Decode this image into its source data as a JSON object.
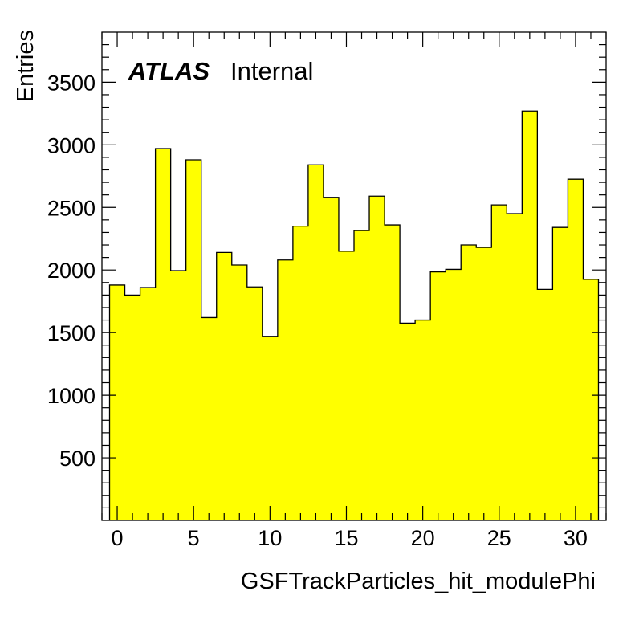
{
  "label": {
    "experiment": "ATLAS",
    "status": "Internal"
  },
  "chart_data": {
    "type": "histogram",
    "xlabel": "GSFTrackParticles_hit_modulePhi",
    "ylabel": "Entries",
    "bin_width": 1,
    "bin_low_edges": [
      -0.5,
      0.5,
      1.5,
      2.5,
      3.5,
      4.5,
      5.5,
      6.5,
      7.5,
      8.5,
      9.5,
      10.5,
      11.5,
      12.5,
      13.5,
      14.5,
      15.5,
      16.5,
      17.5,
      18.5,
      19.5,
      20.5,
      21.5,
      22.5,
      23.5,
      24.5,
      25.5,
      26.5,
      27.5,
      28.5,
      29.5,
      30.5
    ],
    "values": [
      1880,
      1800,
      1860,
      2970,
      1995,
      2880,
      1620,
      2140,
      2040,
      1865,
      1470,
      2080,
      2350,
      2840,
      2580,
      2150,
      2315,
      2590,
      2360,
      1575,
      1600,
      1985,
      2005,
      2200,
      2180,
      2520,
      2450,
      3270,
      1845,
      2340,
      2725,
      1925
    ],
    "xlim": [
      -1,
      32
    ],
    "ylim": [
      0,
      3900
    ],
    "x_ticks": [
      0,
      5,
      10,
      15,
      20,
      25,
      30
    ],
    "y_ticks": [
      500,
      1000,
      1500,
      2000,
      2500,
      3000,
      3500
    ],
    "fill_color": "#ffff00",
    "line_color": "#000000",
    "grid": false,
    "legend": "none"
  }
}
